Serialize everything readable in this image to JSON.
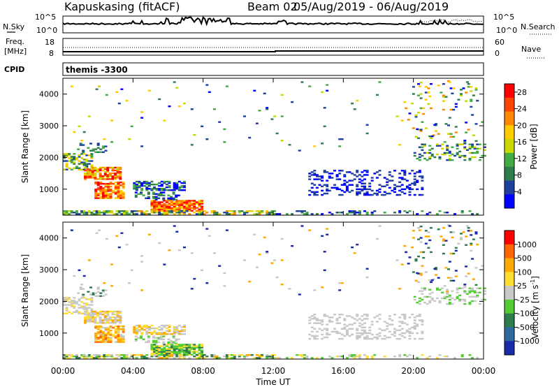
{
  "header": {
    "station": "Kapuskasing (fitACF)",
    "beam": "Beam 02",
    "date_range": "05/Aug/2019 - 06/Aug/2019"
  },
  "top_panels": {
    "nsky_label": "N.Sky",
    "nsearch_label": "N.Search",
    "noise_ticks": [
      "10^5",
      "10^0"
    ],
    "freq_label": "Freq.",
    "freq_unit": "[MHz]",
    "freq_ticks": [
      "18",
      "8"
    ],
    "nave_ticks": [
      "60",
      "0"
    ],
    "nave_label": "Nave",
    "cpid_label": "CPID",
    "cpid_value": "themis -3300"
  },
  "colors": {
    "power": [
      "#0000ff",
      "#2040a0",
      "#2e7d4f",
      "#44aa44",
      "#c8d800",
      "#ffcc00",
      "#ff8800",
      "#ff4400",
      "#ff0000"
    ],
    "velocity": [
      "#1a2aa8",
      "#2e6aa0",
      "#2e7d4f",
      "#55cc33",
      "#c8c8c8",
      "#ffdd33",
      "#ffaa00",
      "#ff6600",
      "#ff0000"
    ]
  },
  "chart_data": [
    {
      "type": "heatmap",
      "title": "Power",
      "ylabel": "Slant Range [km]",
      "xlabel": "",
      "x_ticks": [
        "00:00",
        "04:00",
        "08:00",
        "12:00",
        "16:00",
        "20:00",
        "00:00"
      ],
      "y_ticks": [
        "1000",
        "2000",
        "3000",
        "4000"
      ],
      "ylim": [
        180,
        4500
      ],
      "xlim_hours": [
        0,
        24
      ],
      "colorbar": {
        "label": "Power [dB]",
        "ticks": [
          "4",
          "8",
          "12",
          "16",
          "20",
          "24",
          "28"
        ],
        "range": [
          0,
          30
        ]
      }
    },
    {
      "type": "heatmap",
      "title": "Velocity",
      "ylabel": "Slant Range [km]",
      "xlabel": "Time UT",
      "x_ticks": [
        "00:00",
        "04:00",
        "08:00",
        "12:00",
        "16:00",
        "20:00",
        "00:00"
      ],
      "y_ticks": [
        "1000",
        "2000",
        "3000",
        "4000"
      ],
      "ylim": [
        180,
        4500
      ],
      "xlim_hours": [
        0,
        24
      ],
      "colorbar": {
        "label": "Velocity [m s^-1]",
        "ticks": [
          "1000",
          "500",
          "100",
          "25",
          "-25",
          "-100",
          "-500",
          "-1000"
        ]
      }
    }
  ]
}
